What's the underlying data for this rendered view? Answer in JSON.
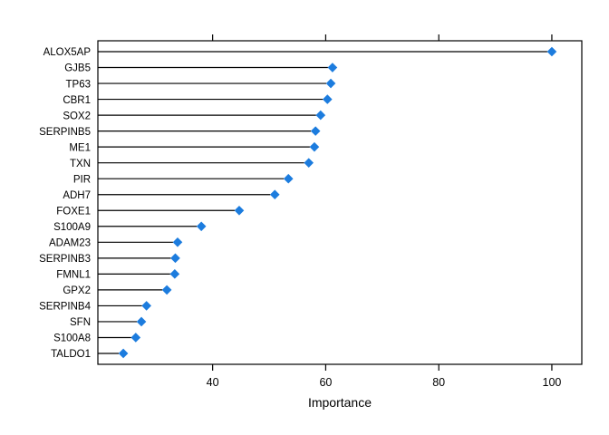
{
  "chart_data": {
    "type": "scatter",
    "subtype": "dotchart-lollipop",
    "title": "",
    "xlabel": "Importance",
    "ylabel": "",
    "xlim": [
      19.7,
      105.3
    ],
    "xticks": [
      40,
      60,
      80,
      100
    ],
    "xtick_labels": [
      "40",
      "60",
      "80",
      "100"
    ],
    "grid": "off",
    "legend": "none",
    "point_shape": "filled-diamond",
    "categories": [
      "ALOX5AP",
      "GJB5",
      "TP63",
      "CBR1",
      "SOX2",
      "SERPINB5",
      "ME1",
      "TXN",
      "PIR",
      "ADH7",
      "FOXE1",
      "S100A9",
      "ADAM23",
      "SERPINB3",
      "FMNL1",
      "GPX2",
      "SERPINB4",
      "SFN",
      "S100A8",
      "TALDO1"
    ],
    "values": [
      100.0,
      61.2,
      60.9,
      60.3,
      59.1,
      58.2,
      58.0,
      57.0,
      53.4,
      51.0,
      44.7,
      38.0,
      33.8,
      33.4,
      33.3,
      31.9,
      28.3,
      27.4,
      26.4,
      24.2
    ]
  },
  "colors": {
    "point": "#1C7CDE",
    "line": "#000000",
    "box": "#000000",
    "text": "#000000",
    "background": "#ffffff"
  }
}
